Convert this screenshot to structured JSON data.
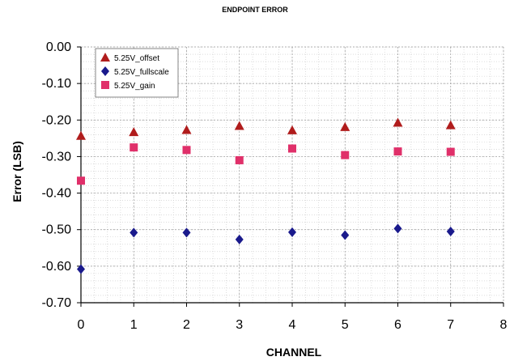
{
  "chart_data": {
    "type": "scatter",
    "title": "ENDPOINT ERROR",
    "xlabel": "CHANNEL",
    "ylabel": "Error (LSB)",
    "xlim": [
      0,
      8
    ],
    "ylim": [
      -0.7,
      0.0
    ],
    "x_ticks": [
      "0",
      "1",
      "2",
      "3",
      "4",
      "5",
      "6",
      "7",
      "8"
    ],
    "y_ticks": [
      "0.00",
      "-0.10",
      "-0.20",
      "-0.30",
      "-0.40",
      "-0.50",
      "-0.60",
      "-0.70"
    ],
    "grid": true,
    "legend_position": "top-left",
    "series": [
      {
        "name": "5.25V_offset",
        "marker": "triangle",
        "color": "#b01c1c",
        "x": [
          0,
          1,
          2,
          3,
          4,
          5,
          6,
          7
        ],
        "y": [
          -0.243,
          -0.233,
          -0.227,
          -0.216,
          -0.228,
          -0.219,
          -0.207,
          -0.214
        ]
      },
      {
        "name": "5.25V_fullscale",
        "marker": "diamond",
        "color": "#1a1a8c",
        "x": [
          0,
          1,
          2,
          3,
          4,
          5,
          6,
          7
        ],
        "y": [
          -0.608,
          -0.508,
          -0.508,
          -0.527,
          -0.507,
          -0.515,
          -0.497,
          -0.505
        ]
      },
      {
        "name": "5.25V_gain",
        "marker": "square",
        "color": "#e0306a",
        "x": [
          0,
          1,
          2,
          3,
          4,
          5,
          6,
          7
        ],
        "y": [
          -0.366,
          -0.275,
          -0.282,
          -0.31,
          -0.278,
          -0.296,
          -0.286,
          -0.287
        ]
      }
    ]
  }
}
